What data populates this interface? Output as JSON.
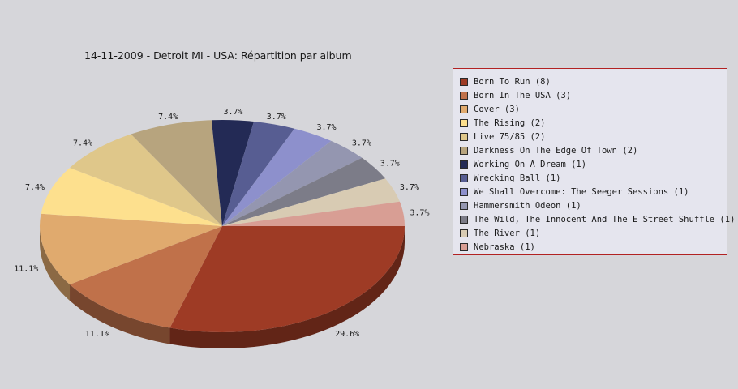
{
  "chart_data": {
    "type": "pie",
    "title": "14-11-2009 - Detroit MI - USA:  Répartition par album",
    "legend_position": "right",
    "slices": [
      {
        "label": "Born To Run (8)",
        "value": 8,
        "percent_label": "29.6%",
        "color": "#9e3b25"
      },
      {
        "label": "Born In The USA (3)",
        "value": 3,
        "percent_label": "11.1%",
        "color": "#c0714a"
      },
      {
        "label": "Cover (3)",
        "value": 3,
        "percent_label": "11.1%",
        "color": "#e0aa6e"
      },
      {
        "label": "The Rising (2)",
        "value": 2,
        "percent_label": "7.4%",
        "color": "#fde08e"
      },
      {
        "label": "Live 75/85 (2)",
        "value": 2,
        "percent_label": "7.4%",
        "color": "#dfc78a"
      },
      {
        "label": "Darkness On The Edge Of Town (2)",
        "value": 2,
        "percent_label": "7.4%",
        "color": "#b7a47e"
      },
      {
        "label": "Working On A Dream (1)",
        "value": 1,
        "percent_label": "3.7%",
        "color": "#232a55"
      },
      {
        "label": "Wrecking Ball (1)",
        "value": 1,
        "percent_label": "3.7%",
        "color": "#575d92"
      },
      {
        "label": "We Shall Overcome: The Seeger Sessions (1)",
        "value": 1,
        "percent_label": "3.7%",
        "color": "#8d90cc"
      },
      {
        "label": "Hammersmith Odeon  (1)",
        "value": 1,
        "percent_label": "3.7%",
        "color": "#9496b0"
      },
      {
        "label": "The Wild, The Innocent And The E Street Shuffle (1)",
        "value": 1,
        "percent_label": "3.7%",
        "color": "#7c7c88"
      },
      {
        "label": "The River (1)",
        "value": 1,
        "percent_label": "3.7%",
        "color": "#d8cbb3"
      },
      {
        "label": "Nebraska (1)",
        "value": 1,
        "percent_label": "3.7%",
        "color": "#d89e94"
      }
    ]
  }
}
